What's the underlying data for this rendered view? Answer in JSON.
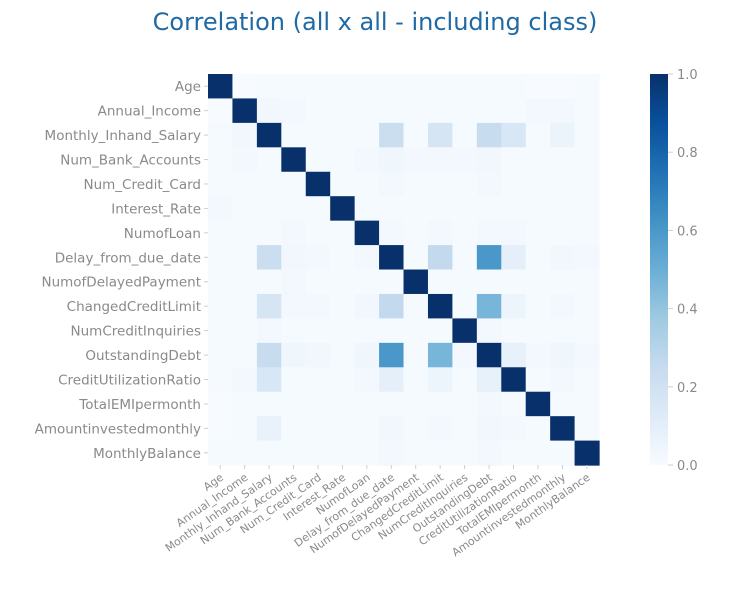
{
  "chart_data": {
    "type": "heatmap",
    "title": "Correlation (all x all - including class)",
    "xlabel": "",
    "ylabel": "",
    "labels": [
      "Age",
      "Annual_Income",
      "Monthly_Inhand_Salary",
      "Num_Bank_Accounts",
      "Num_Credit_Card",
      "Interest_Rate",
      "NumofLoan",
      "Delay_from_due_date",
      "NumofDelayedPayment",
      "ChangedCreditLimit",
      "NumCreditInquiries",
      "OutstandingDebt",
      "CreditUtilizationRatio",
      "TotalEMIpermonth",
      "Amountinvestedmonthly",
      "MonthlyBalance"
    ],
    "matrix": [
      [
        1.0,
        0.0,
        0.01,
        0.01,
        0.01,
        0.01,
        0.01,
        0.01,
        0.01,
        0.01,
        0.01,
        0.01,
        0.01,
        0.0,
        0.0,
        0.01
      ],
      [
        0.0,
        1.0,
        0.03,
        0.02,
        0.01,
        0.01,
        0.01,
        0.01,
        0.01,
        0.01,
        0.01,
        0.01,
        0.01,
        0.02,
        0.02,
        0.01
      ],
      [
        0.01,
        0.03,
        1.0,
        0.01,
        0.01,
        0.01,
        0.01,
        0.23,
        0.01,
        0.17,
        0.01,
        0.24,
        0.16,
        0.01,
        0.06,
        0.01
      ],
      [
        0.01,
        0.02,
        0.01,
        1.0,
        0.01,
        0.01,
        0.02,
        0.04,
        0.02,
        0.02,
        0.02,
        0.03,
        0.01,
        0.01,
        0.01,
        0.01
      ],
      [
        0.01,
        0.01,
        0.01,
        0.01,
        1.0,
        0.01,
        0.01,
        0.02,
        0.01,
        0.01,
        0.01,
        0.02,
        0.01,
        0.01,
        0.01,
        0.01
      ],
      [
        0.02,
        0.01,
        0.01,
        0.01,
        0.01,
        1.0,
        0.01,
        0.01,
        0.01,
        0.01,
        0.01,
        0.01,
        0.01,
        0.01,
        0.01,
        0.01
      ],
      [
        0.01,
        0.01,
        0.01,
        0.02,
        0.01,
        0.01,
        1.0,
        0.02,
        0.01,
        0.02,
        0.01,
        0.02,
        0.02,
        0.01,
        0.01,
        0.01
      ],
      [
        0.01,
        0.01,
        0.23,
        0.03,
        0.02,
        0.01,
        0.02,
        1.0,
        0.01,
        0.26,
        0.01,
        0.6,
        0.09,
        0.01,
        0.03,
        0.02
      ],
      [
        0.01,
        0.01,
        0.01,
        0.02,
        0.01,
        0.01,
        0.01,
        0.01,
        1.0,
        0.01,
        0.01,
        0.01,
        0.01,
        0.01,
        0.01,
        0.01
      ],
      [
        0.01,
        0.01,
        0.17,
        0.02,
        0.02,
        0.01,
        0.03,
        0.26,
        0.01,
        1.0,
        0.01,
        0.47,
        0.05,
        0.01,
        0.02,
        0.01
      ],
      [
        0.01,
        0.01,
        0.02,
        0.01,
        0.01,
        0.01,
        0.01,
        0.01,
        0.01,
        0.01,
        1.0,
        0.02,
        0.01,
        0.01,
        0.01,
        0.01
      ],
      [
        0.01,
        0.01,
        0.24,
        0.04,
        0.03,
        0.01,
        0.04,
        0.6,
        0.01,
        0.47,
        0.02,
        1.0,
        0.08,
        0.02,
        0.04,
        0.02
      ],
      [
        0.01,
        0.02,
        0.16,
        0.01,
        0.01,
        0.01,
        0.02,
        0.09,
        0.01,
        0.05,
        0.01,
        0.08,
        1.0,
        0.01,
        0.02,
        0.01
      ],
      [
        0.0,
        0.01,
        0.01,
        0.01,
        0.01,
        0.01,
        0.01,
        0.01,
        0.01,
        0.01,
        0.01,
        0.02,
        0.01,
        1.0,
        0.01,
        0.01
      ],
      [
        0.0,
        0.01,
        0.07,
        0.01,
        0.01,
        0.01,
        0.01,
        0.03,
        0.01,
        0.02,
        0.01,
        0.03,
        0.02,
        0.01,
        1.0,
        0.01
      ],
      [
        0.01,
        0.01,
        0.01,
        0.01,
        0.01,
        0.01,
        0.01,
        0.02,
        0.01,
        0.01,
        0.01,
        0.02,
        0.01,
        0.01,
        0.01,
        1.0
      ]
    ],
    "color_range": [
      0.0,
      1.0
    ],
    "colorbar_ticks": [
      "0.0",
      "0.2",
      "0.4",
      "0.6",
      "0.8",
      "1.0"
    ],
    "colormap": "Blues",
    "legend_placement": "right",
    "grid": false
  }
}
